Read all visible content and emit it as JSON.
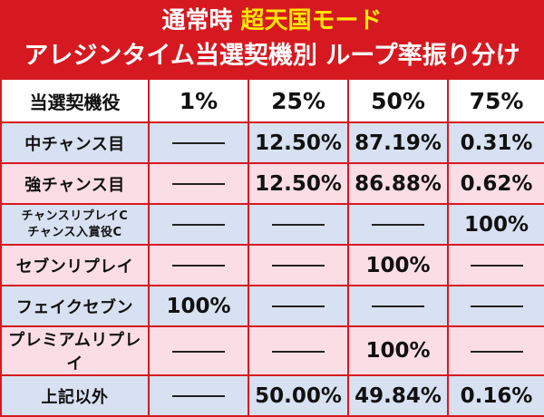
{
  "title": {
    "prefix": "通常時",
    "mode": "超天国モード",
    "subtitle": "アレジンタイム当選契機別 ループ率振り分け"
  },
  "table": {
    "headers": [
      "当選契機役",
      "1%",
      "25%",
      "50%",
      "75%"
    ],
    "rows": [
      {
        "label": [
          "中チャンス目"
        ],
        "cells": [
          "",
          "12.50%",
          "87.19%",
          "0.31%"
        ]
      },
      {
        "label": [
          "強チャンス目"
        ],
        "cells": [
          "",
          "12.50%",
          "86.88%",
          "0.62%"
        ]
      },
      {
        "label": [
          "チャンスリプレイC",
          "チャンス入賞役C"
        ],
        "cells": [
          "",
          "",
          "",
          "100%"
        ]
      },
      {
        "label": [
          "セブンリプレイ"
        ],
        "cells": [
          "",
          "",
          "100%",
          ""
        ]
      },
      {
        "label": [
          "フェイクセブン"
        ],
        "cells": [
          "100%",
          "",
          "",
          ""
        ]
      },
      {
        "label": [
          "プレミアムリプレイ"
        ],
        "cells": [
          "",
          "",
          "100%",
          ""
        ]
      },
      {
        "label": [
          "上記以外"
        ],
        "cells": [
          "",
          "50.00%",
          "49.84%",
          "0.16%"
        ]
      }
    ],
    "colors": {
      "frame": "#d61920",
      "row_blue": "#d7e1f1",
      "row_pink": "#fbdde6",
      "mode_text": "#ffe600"
    }
  }
}
